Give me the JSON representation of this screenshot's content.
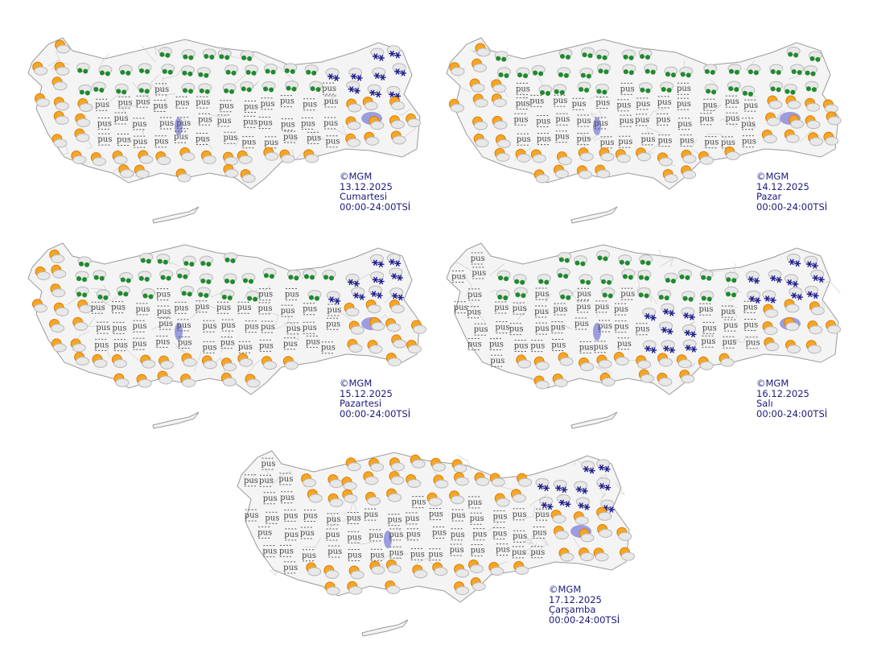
{
  "colors": {
    "land": "#f4f4f4",
    "border": "#c8c8c8",
    "coast": "#9a9a9a",
    "lake": "#9c9ce0",
    "label": "#1a1a7a",
    "sun": "#f5a623",
    "cloud": "#b9b9b9",
    "rain": "#1f8a2e",
    "snow": "#1c1c8c",
    "fog": "#555555"
  },
  "fog_glyph": "pus",
  "maps": [
    {
      "copyright": "©MGM",
      "date": "13.12.2025",
      "day": "Cumartesi",
      "period": "00:00-24:00TSİ",
      "regions": {
        "west": "partly-cloudy",
        "north_coast": "rain",
        "northeast": "snow",
        "interior": "fog",
        "south": "partly-cloudy",
        "east": "partly-cloudy"
      }
    },
    {
      "copyright": "©MGM",
      "date": "14.12.2025",
      "day": "Pazar",
      "period": "00:00-24:00TSİ",
      "regions": {
        "west": "partly-cloudy",
        "north_coast": "rain",
        "northeast": "rain",
        "interior": "fog",
        "south": "partly-cloudy",
        "east": "partly-cloudy"
      }
    },
    {
      "copyright": "©MGM",
      "date": "15.12.2025",
      "day": "Pazartesi",
      "period": "00:00-24:00TSİ",
      "regions": {
        "west": "partly-cloudy",
        "north_coast": "rain",
        "northeast": "snow",
        "interior": "fog",
        "south": "partly-cloudy",
        "east": "partly-cloudy"
      }
    },
    {
      "copyright": "©MGM",
      "date": "16.12.2025",
      "day": "Salı",
      "period": "00:00-24:00TSİ",
      "regions": {
        "west": "fog",
        "north_coast": "rain",
        "northeast": "snow",
        "interior": "fog",
        "south": "partly-cloudy",
        "east": "partly-cloudy",
        "central": "snow"
      }
    },
    {
      "copyright": "©MGM",
      "date": "17.12.2025",
      "day": "Çarşamba",
      "period": "00:00-24:00TSİ",
      "regions": {
        "west": "fog",
        "north_coast": "partly-cloudy",
        "northeast": "snow",
        "interior": "fog",
        "south": "partly-cloudy",
        "east": "partly-cloudy"
      }
    }
  ]
}
